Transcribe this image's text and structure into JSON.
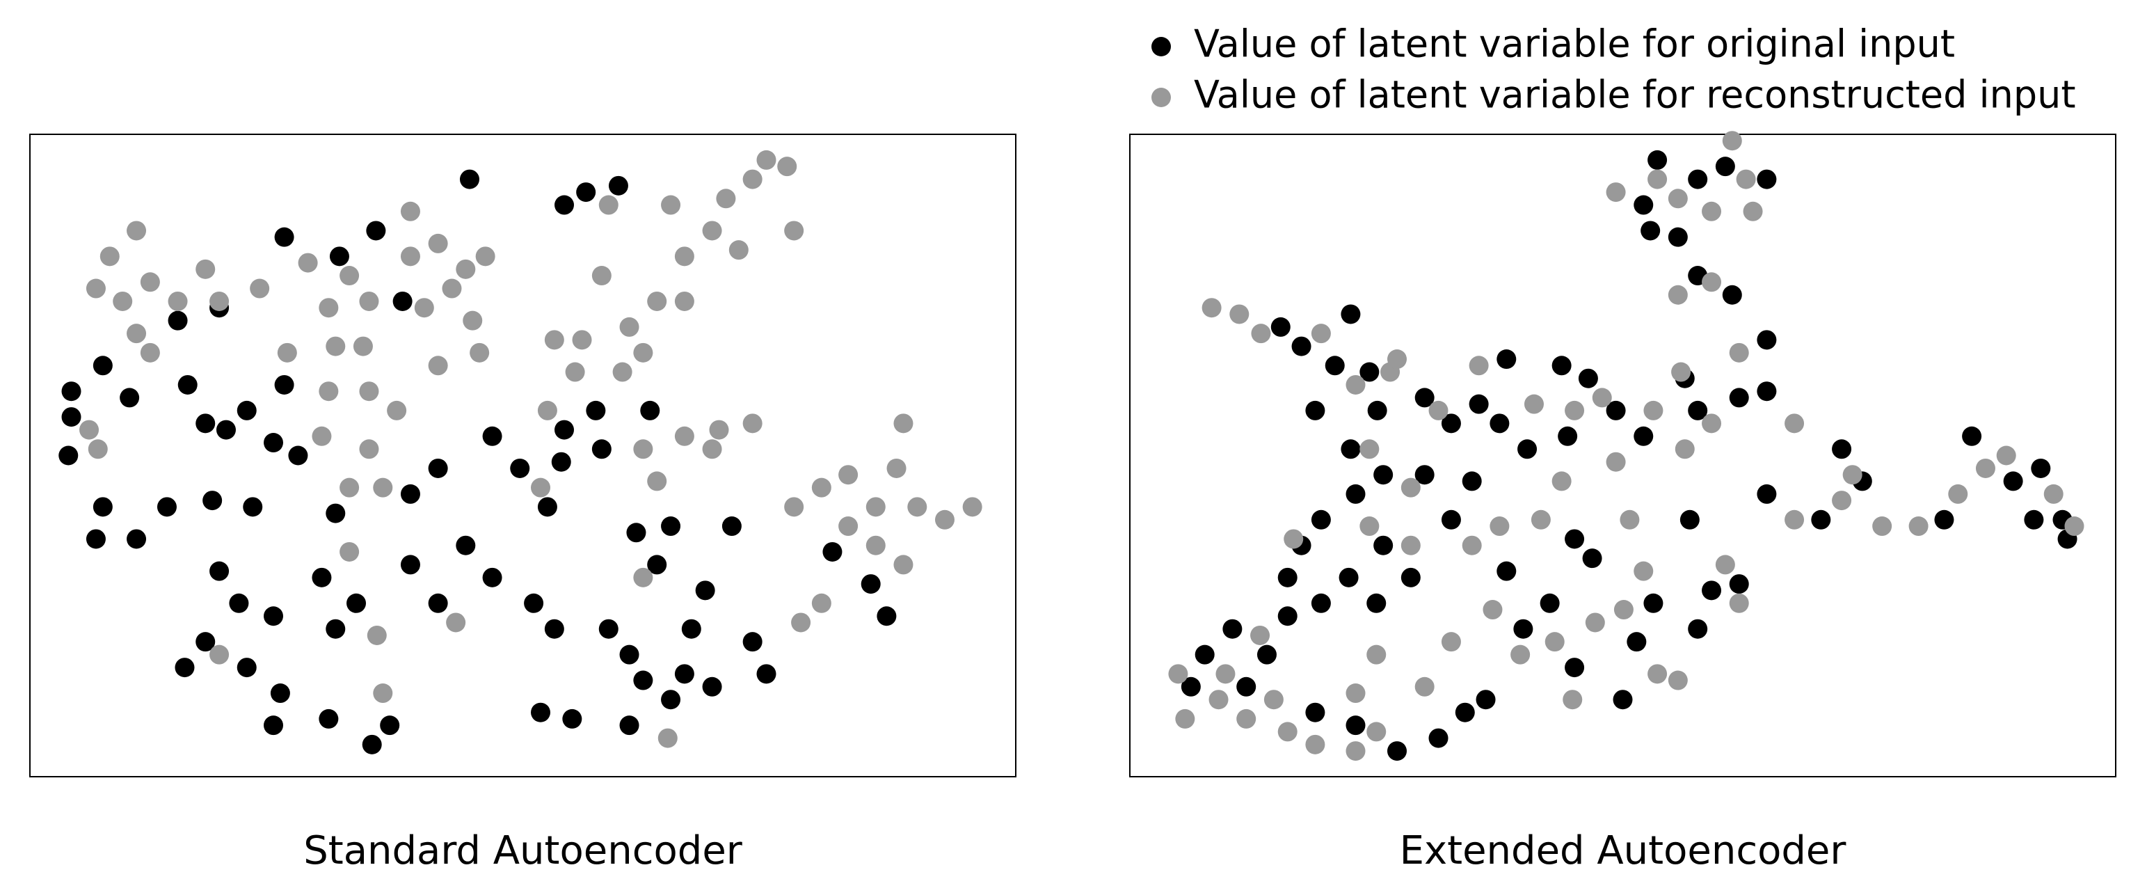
{
  "chart_data": [
    {
      "type": "scatter",
      "title": "Standard Autoencoder",
      "xlim": [
        0,
        100
      ],
      "ylim": [
        0,
        100
      ],
      "series": [
        {
          "color": "#000000",
          "x": [
            44.6,
            54.2,
            56.4,
            59.7,
            25.8,
            35.1,
            31.4,
            37.8,
            19.2,
            15,
            7.4,
            4.2,
            4.2,
            3.9,
            10.1,
            16,
            17.8,
            19.9,
            24.7,
            27.2,
            22,
            25.8,
            7.4,
            6.7,
            10.8,
            13.9,
            18.5,
            22.6,
            19.2,
            21.2,
            24.7,
            15.7,
            17.8,
            22,
            25.4,
            24.7,
            30.3,
            34.7,
            36.5,
            31,
            33.1,
            29.6,
            31,
            38.6,
            41.4,
            44.2,
            46.9,
            38.6,
            41.4,
            46.9,
            49.7,
            52.5,
            53.9,
            54.2,
            57.4,
            58,
            51.1,
            53.2,
            58.7,
            61.5,
            65,
            63.6,
            60.8,
            62.2,
            60.8,
            65,
            66.4,
            68.5,
            67.1,
            69.2,
            73.3,
            74.7,
            51.8,
            55,
            71.2,
            85.3,
            86.9,
            81.4,
            62.9
          ],
          "y": [
            93,
            89,
            91,
            92,
            84,
            85,
            81,
            74,
            73,
            71,
            64,
            60,
            56,
            50,
            59,
            61,
            55,
            54,
            52,
            50,
            57,
            61,
            42,
            37,
            37,
            42,
            43,
            42,
            32,
            27,
            25,
            17,
            21,
            17,
            13,
            8,
            9,
            5,
            8,
            23,
            27,
            31,
            41,
            33,
            27,
            36,
            31,
            44,
            48,
            53,
            48,
            42,
            49,
            54,
            57,
            51,
            27,
            23,
            23,
            38,
            39,
            33,
            19,
            15,
            8,
            12,
            16,
            29,
            23,
            14,
            21,
            16,
            10,
            9,
            39,
            30,
            25,
            35,
            57
          ]
        },
        {
          "color": "#999999",
          "x": [
            10.8,
            8.1,
            6.7,
            9.4,
            12.2,
            15,
            17.8,
            19.2,
            10.8,
            12.2,
            6,
            6.9,
            23.3,
            28.2,
            32.4,
            30.3,
            34.4,
            31,
            33.8,
            38.6,
            38.6,
            41.4,
            44.2,
            46.2,
            42.8,
            40,
            44.9,
            41.4,
            45.6,
            37.2,
            34.4,
            30.3,
            26.1,
            29.6,
            34.4,
            35.8,
            32.4,
            51.8,
            58.7,
            58,
            65,
            70.6,
            73.3,
            74.7,
            76.8,
            69.2,
            71.9,
            77.5,
            66.4,
            63.6,
            60.8,
            62.2,
            60.1,
            56,
            53.2,
            55.3,
            52.5,
            66.4,
            62.2,
            63.6,
            66.4,
            69.9,
            73.3,
            69.2,
            77.5,
            80.3,
            83,
            85.8,
            88.6,
            87.9,
            90,
            92.8,
            95.6,
            83,
            85.8,
            88.6,
            80.3,
            78.2,
            62.2,
            35.2,
            35.8,
            19.2,
            64.7,
            32.4,
            43.2
          ],
          "y": [
            85,
            81,
            76,
            74,
            77,
            74,
            79,
            74,
            69,
            66,
            54,
            51,
            76,
            80,
            78,
            73,
            74,
            67,
            67,
            81,
            88,
            83,
            79,
            81,
            76,
            73,
            71,
            64,
            66,
            57,
            60,
            60,
            66,
            53,
            51,
            45,
            45,
            45,
            89,
            78,
            89,
            90,
            93,
            96,
            95,
            85,
            82,
            85,
            81,
            74,
            70,
            66,
            63,
            68,
            68,
            63,
            57,
            74,
            51,
            46,
            53,
            54,
            55,
            51,
            42,
            45,
            47,
            42,
            55,
            48,
            42,
            40,
            42,
            39,
            36,
            33,
            27,
            24,
            31,
            22,
            13,
            19,
            6,
            35,
            24
          ]
        }
      ]
    },
    {
      "type": "scatter",
      "title": "Extended Autoencoder",
      "xlim": [
        0,
        100
      ],
      "ylim": [
        0,
        100
      ],
      "legend": "top",
      "series": [
        {
          "name": "Value of latent variable for original input",
          "color": "#000000",
          "x": [
            53.5,
            57.6,
            60.4,
            52.1,
            52.8,
            55.6,
            57.6,
            61.1,
            64.6,
            15.3,
            17.4,
            20.8,
            22.4,
            24.3,
            18.8,
            22.4,
            25.1,
            29.9,
            32.6,
            35.4,
            38.2,
            43.8,
            46.5,
            49.3,
            52.1,
            56.3,
            61.8,
            64.6,
            64.6,
            57.6,
            44.4,
            40.3,
            37.5,
            34.7,
            32.6,
            29.9,
            25.7,
            22.9,
            19.4,
            17.4,
            16,
            19.4,
            22.2,
            25.7,
            28.5,
            25,
            10.4,
            7.6,
            6.2,
            11.8,
            13.9,
            16,
            18.8,
            22.9,
            27.1,
            31.3,
            34,
            36.1,
            39.9,
            42.6,
            46.9,
            51.4,
            53.1,
            50,
            45.1,
            56.8,
            57.6,
            61.8,
            59,
            64.6,
            70.1,
            74.3,
            82.6,
            85.4,
            89.6,
            92.4,
            94.6,
            91.7,
            95.1,
            72.2,
            45.1,
            38.2
          ],
          "y": [
            96,
            93,
            95,
            89,
            85,
            84,
            78,
            75,
            93,
            70,
            67,
            64,
            72,
            63,
            57,
            51,
            57,
            59,
            55,
            58,
            65,
            64,
            62,
            57,
            53,
            62,
            59,
            68,
            60,
            57,
            53,
            51,
            55,
            46,
            40,
            47,
            47,
            44,
            40,
            36,
            31,
            27,
            31,
            36,
            31,
            27,
            23,
            19,
            14,
            14,
            19,
            25,
            10,
            8,
            4,
            6,
            10,
            12,
            23,
            27,
            34,
            21,
            27,
            12,
            17,
            40,
            23,
            30,
            29,
            44,
            40,
            46,
            40,
            53,
            46,
            48,
            40,
            40,
            37,
            51,
            37,
            32
          ]
        },
        {
          "name": "Value of latent variable for reconstructed input",
          "color": "#999999",
          "x": [
            49.3,
            55.6,
            59,
            61.1,
            62.5,
            63.2,
            53.5,
            55.6,
            59,
            8.3,
            11.1,
            13.3,
            19.4,
            22.9,
            26.4,
            27.1,
            31.3,
            35.4,
            41,
            45.1,
            47.9,
            53.1,
            56.3,
            59,
            61.8,
            55.9,
            49.3,
            43.8,
            37.5,
            34.7,
            28.5,
            24.3,
            16.6,
            28.5,
            36.8,
            39.6,
            43.1,
            47.2,
            50.1,
            52.1,
            53.5,
            55.6,
            44.9,
            32.6,
            29.9,
            25,
            22.9,
            18.8,
            16,
            22.9,
            25,
            4.9,
            5.6,
            9,
            11.8,
            14.6,
            9.7,
            13.2,
            61.8,
            60.4,
            67.4,
            73.3,
            76.3,
            80,
            84,
            86.8,
            88.9,
            93.7,
            95.8,
            67.4,
            72.2,
            50.7,
            24.3,
            41.7
          ],
          "y": [
            91,
            90,
            88,
            99,
            93,
            88,
            93,
            75,
            77,
            73,
            72,
            69,
            69,
            61,
            63,
            65,
            57,
            64,
            58,
            57,
            59,
            57,
            51,
            55,
            66,
            63,
            49,
            46,
            39,
            36,
            45,
            39,
            37,
            36,
            26,
            19,
            21,
            24,
            26,
            32,
            16,
            15,
            12,
            21,
            14,
            19,
            13,
            5,
            7,
            4,
            7,
            16,
            9,
            12,
            9,
            12,
            16,
            22,
            27,
            33,
            55,
            47,
            39,
            39,
            44,
            48,
            50,
            44,
            39,
            40,
            43,
            40,
            51,
            40
          ]
        }
      ]
    }
  ]
}
